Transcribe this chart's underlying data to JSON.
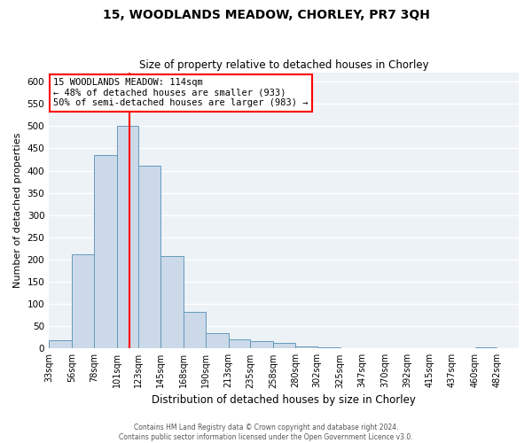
{
  "title": "15, WOODLANDS MEADOW, CHORLEY, PR7 3QH",
  "subtitle": "Size of property relative to detached houses in Chorley",
  "xlabel": "Distribution of detached houses by size in Chorley",
  "ylabel": "Number of detached properties",
  "footer_line1": "Contains HM Land Registry data © Crown copyright and database right 2024.",
  "footer_line2": "Contains public sector information licensed under the Open Government Licence v3.0.",
  "annotation_line1": "15 WOODLANDS MEADOW: 114sqm",
  "annotation_line2": "← 48% of detached houses are smaller (933)",
  "annotation_line3": "50% of semi-detached houses are larger (983) →",
  "property_size": 114,
  "bar_color": "#ccd9e8",
  "bar_edge_color": "#6699bb",
  "vline_color": "red",
  "vline_x": 114,
  "annotation_box_edgecolor": "red",
  "bins": [
    33,
    56,
    78,
    101,
    123,
    145,
    168,
    190,
    213,
    235,
    258,
    280,
    302,
    325,
    347,
    370,
    392,
    415,
    437,
    460,
    482
  ],
  "heights": [
    18,
    212,
    435,
    500,
    410,
    207,
    83,
    35,
    20,
    17,
    12,
    5,
    2,
    0,
    0,
    0,
    0,
    0,
    0,
    3
  ],
  "ylim": [
    0,
    620
  ],
  "yticks": [
    0,
    50,
    100,
    150,
    200,
    250,
    300,
    350,
    400,
    450,
    500,
    550,
    600
  ],
  "bg_color": "#edf2f7",
  "grid_color": "white",
  "title_fontsize": 10,
  "subtitle_fontsize": 8.5,
  "ylabel_fontsize": 8,
  "xlabel_fontsize": 8.5,
  "tick_labelsize": 7.5,
  "ann_fontsize": 7.5,
  "footer_fontsize": 5.5
}
